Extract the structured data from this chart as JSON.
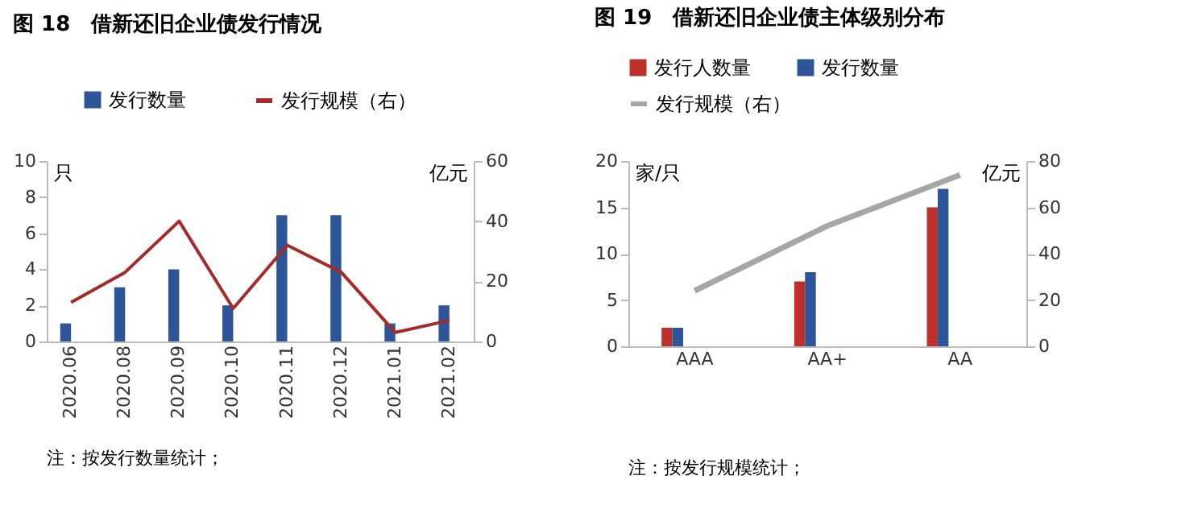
{
  "chart_data": [
    {
      "type": "bar",
      "title": "图 18　借新还旧企业债发行情况",
      "categories": [
        "2020.06",
        "2020.08",
        "2020.09",
        "2020.10",
        "2020.11",
        "2020.12",
        "2021.01",
        "2021.02"
      ],
      "series": [
        {
          "name": "发行数量",
          "color": "#2e5597",
          "values": [
            1,
            3,
            4,
            2,
            7,
            7,
            1,
            2
          ]
        },
        {
          "name": "发行规模（右）",
          "type": "line",
          "axis": "y2",
          "color": "#a52a2a",
          "values": [
            13,
            23,
            40,
            11,
            32,
            23,
            3,
            7
          ]
        }
      ],
      "ylabel": "只",
      "y2label": "亿元",
      "ylim": [
        0,
        10
      ],
      "yticks": [
        0,
        2,
        4,
        6,
        8,
        10
      ],
      "y2lim": [
        0,
        60
      ],
      "y2ticks": [
        0,
        20,
        40,
        60
      ],
      "legend": "top",
      "annotations": [
        "注：按发行数量统计；"
      ]
    },
    {
      "type": "bar",
      "title": "图 19　借新还旧企业债主体级别分布",
      "categories": [
        "AAA",
        "AA+",
        "AA"
      ],
      "series": [
        {
          "name": "发行人数量",
          "color": "#c0302b",
          "values": [
            2,
            7,
            15
          ]
        },
        {
          "name": "发行数量",
          "color": "#2e5597",
          "values": [
            2,
            8,
            17
          ]
        },
        {
          "name": "发行规模（右）",
          "type": "line",
          "axis": "y2",
          "color": "#a6a6a6",
          "values": [
            24,
            52,
            74
          ]
        }
      ],
      "ylabel": "家/只",
      "y2label": "亿元",
      "ylim": [
        0,
        20
      ],
      "yticks": [
        0,
        5,
        10,
        15,
        20
      ],
      "y2lim": [
        0,
        80
      ],
      "y2ticks": [
        0,
        20,
        40,
        60,
        80
      ],
      "legend": "top",
      "annotations": [
        "注：按发行规模统计；"
      ]
    }
  ]
}
